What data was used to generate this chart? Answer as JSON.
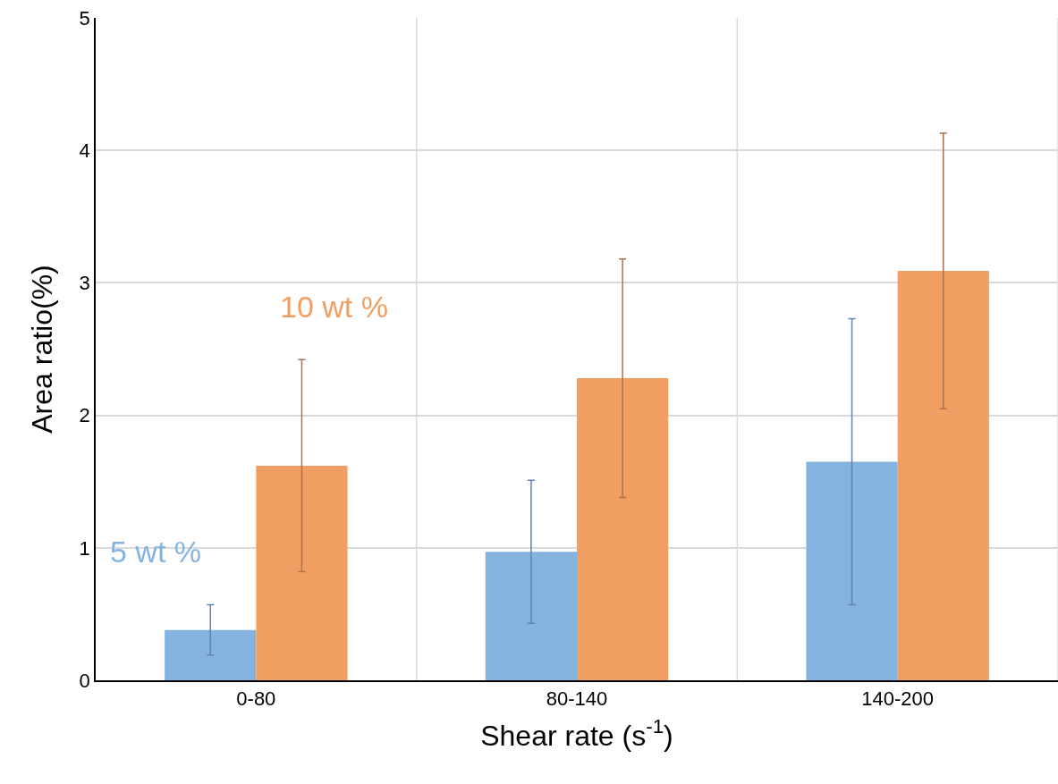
{
  "chart_data": {
    "type": "bar",
    "xlabel": "Shear rate (s$^{-1}$)",
    "ylabel": "Area ratio(%)",
    "categories": [
      "0-80",
      "80-140",
      "140-200"
    ],
    "series": [
      {
        "name": "5 wt %",
        "color": "#85b3e0",
        "values": [
          0.38,
          0.97,
          1.65
        ],
        "errors": [
          [
            0.19,
            0.57
          ],
          [
            0.43,
            1.51
          ],
          [
            0.57,
            2.73
          ]
        ]
      },
      {
        "name": "10 wt %",
        "color": "#f19e62",
        "values": [
          1.62,
          2.28,
          3.09
        ],
        "errors": [
          [
            0.82,
            2.42
          ],
          [
            1.38,
            3.18
          ],
          [
            2.05,
            4.13
          ]
        ]
      }
    ],
    "ylim": [
      0,
      5
    ],
    "yticks": [
      0,
      1,
      2,
      3,
      4,
      5
    ],
    "grid": true,
    "legend": false
  }
}
